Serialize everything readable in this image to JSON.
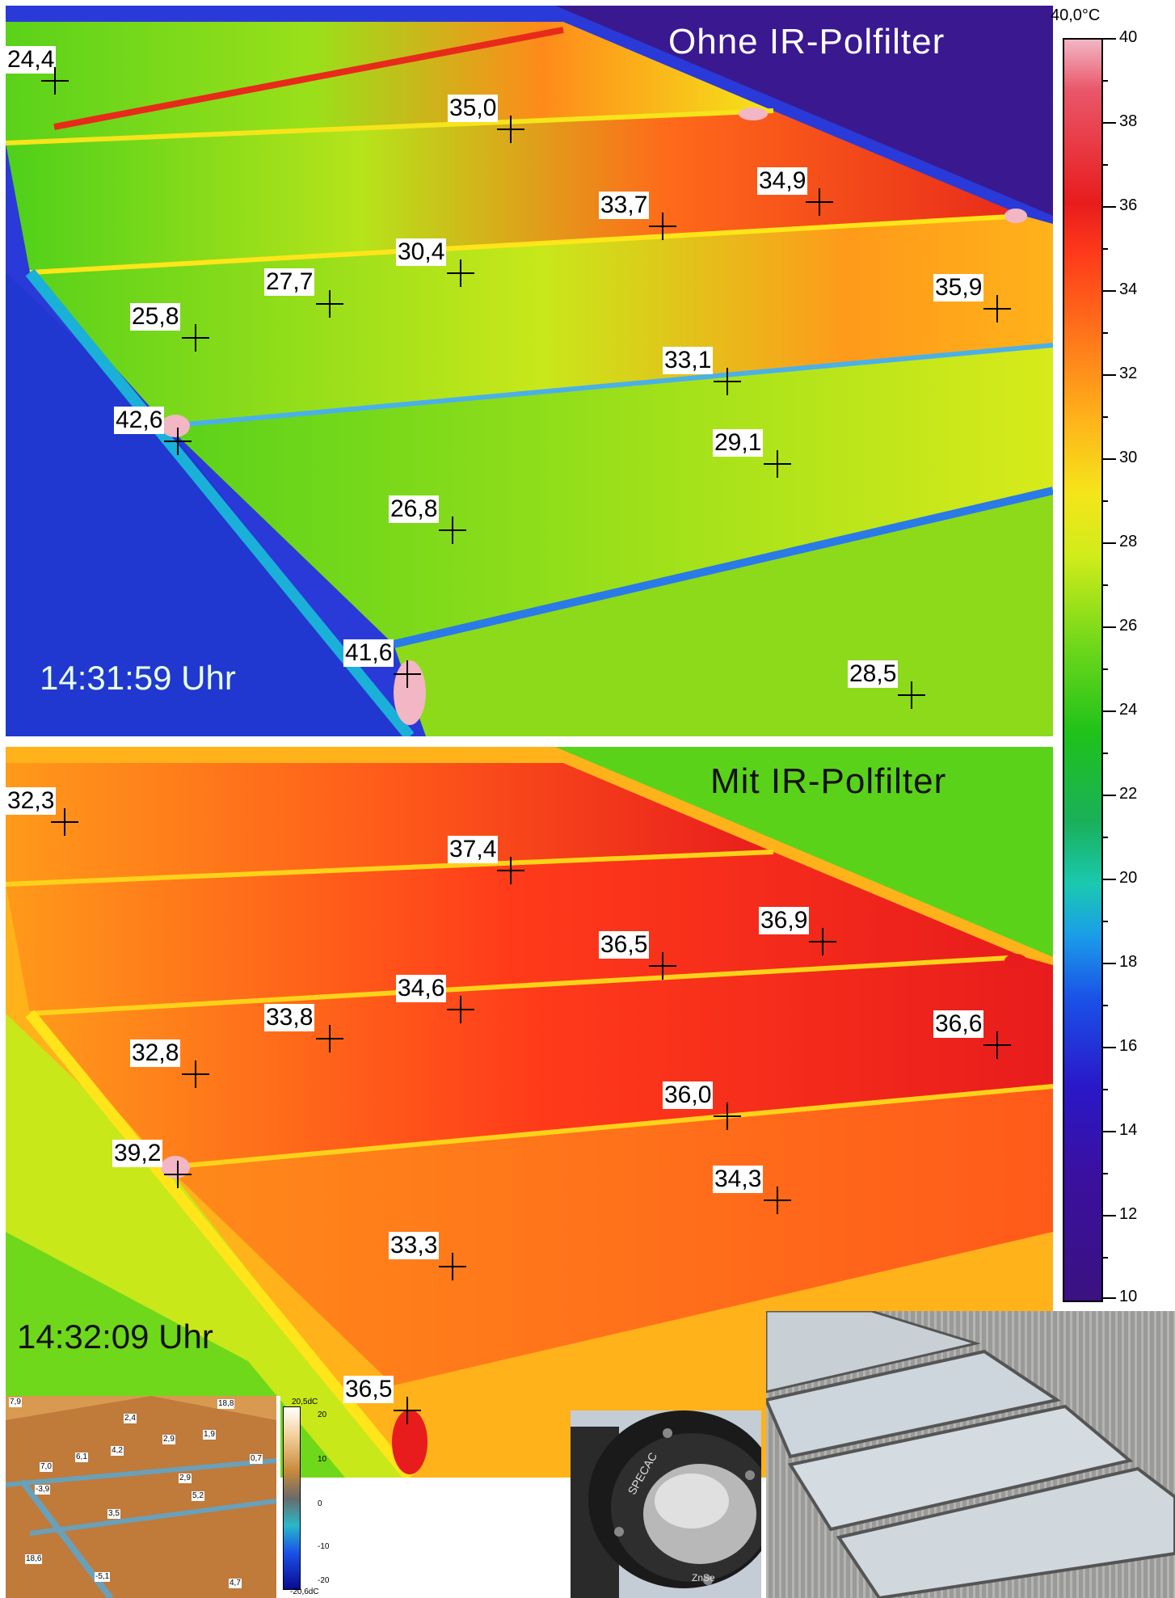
{
  "top_panel": {
    "title": "Ohne IR-Polfilter",
    "time": "14:31:59 Uhr",
    "markers": [
      "24,4",
      "35,0",
      "34,9",
      "33,7",
      "30,4",
      "27,7",
      "35,9",
      "25,8",
      "33,1",
      "42,6",
      "29,1",
      "26,8",
      "41,6",
      "28,5"
    ]
  },
  "bottom_panel": {
    "title": "Mit IR-Polfilter",
    "time": "14:32:09 Uhr",
    "markers": [
      "32,3",
      "37,4",
      "36,9",
      "36,5",
      "34,6",
      "33,8",
      "36,6",
      "32,8",
      "36,0",
      "39,2",
      "34,3",
      "33,3",
      "36,5"
    ]
  },
  "scale": {
    "max_label": "40,0°C",
    "ticks": [
      "40",
      "38",
      "36",
      "34",
      "32",
      "30",
      "28",
      "26",
      "24",
      "22",
      "20",
      "18",
      "16",
      "14",
      "12",
      "10"
    ]
  },
  "inset_thermal": {
    "scale_top": "20,5dC",
    "scale_bottom": "-20,6dC",
    "scale_ticks": [
      "20",
      "10",
      "0",
      "-10",
      "-20"
    ],
    "markers": [
      "7,9",
      "18,8",
      "2,4",
      "2,9",
      "1,9",
      "4,2",
      "6,1",
      "0,7",
      "7,0",
      "2,9",
      "-3,9",
      "5,2",
      "3,5",
      "18,6",
      "-5,1",
      "4,7"
    ]
  },
  "inset_filter": {
    "brand": "SPECAC",
    "material": "ZnSe"
  },
  "colors": {
    "hot": "#e81c1c",
    "warm": "#ff9a1a",
    "mid": "#70d81a",
    "cool": "#1a52e8",
    "cold": "#3a1280"
  }
}
